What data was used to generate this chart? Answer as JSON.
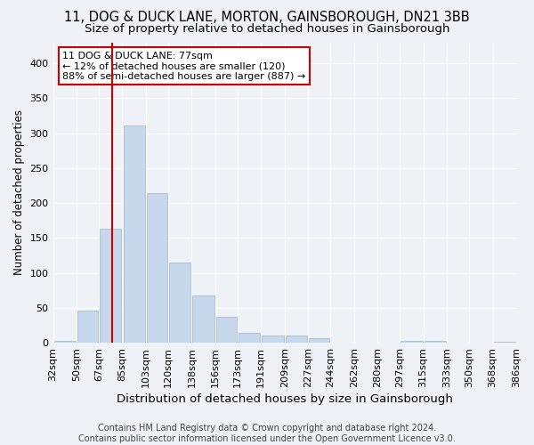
{
  "title": "11, DOG & DUCK LANE, MORTON, GAINSBOROUGH, DN21 3BB",
  "subtitle": "Size of property relative to detached houses in Gainsborough",
  "xlabel": "Distribution of detached houses by size in Gainsborough",
  "ylabel": "Number of detached properties",
  "bar_color": "#c8d8ec",
  "bar_edge_color": "#9ab4cc",
  "vline_color": "#cc0000",
  "vline_x": 77,
  "annotation_line1": "11 DOG & DUCK LANE: 77sqm",
  "annotation_line2": "← 12% of detached houses are smaller (120)",
  "annotation_line3": "88% of semi-detached houses are larger (887) →",
  "annotation_box_color": "#ffffff",
  "annotation_box_edge": "#cc0000",
  "footer_text": "Contains HM Land Registry data © Crown copyright and database right 2024.\nContains public sector information licensed under the Open Government Licence v3.0.",
  "background_color": "#eef2f7",
  "grid_color": "#ffffff",
  "bins": [
    32,
    50,
    67,
    85,
    103,
    120,
    138,
    156,
    173,
    191,
    209,
    227,
    244,
    262,
    280,
    297,
    315,
    333,
    350,
    368,
    386
  ],
  "bin_labels": [
    "32sqm",
    "50sqm",
    "67sqm",
    "85sqm",
    "103sqm",
    "120sqm",
    "138sqm",
    "156sqm",
    "173sqm",
    "191sqm",
    "209sqm",
    "227sqm",
    "244sqm",
    "262sqm",
    "280sqm",
    "297sqm",
    "315sqm",
    "333sqm",
    "350sqm",
    "368sqm",
    "386sqm"
  ],
  "bar_heights": [
    3,
    46,
    163,
    311,
    214,
    115,
    68,
    37,
    14,
    10,
    10,
    6,
    0,
    0,
    0,
    3,
    2,
    0,
    0,
    1
  ],
  "ylim": [
    0,
    430
  ],
  "yticks": [
    0,
    50,
    100,
    150,
    200,
    250,
    300,
    350,
    400
  ],
  "title_fontsize": 10.5,
  "subtitle_fontsize": 9.5,
  "xlabel_fontsize": 9.5,
  "ylabel_fontsize": 8.5,
  "tick_fontsize": 8,
  "annot_fontsize": 8,
  "footer_fontsize": 7
}
